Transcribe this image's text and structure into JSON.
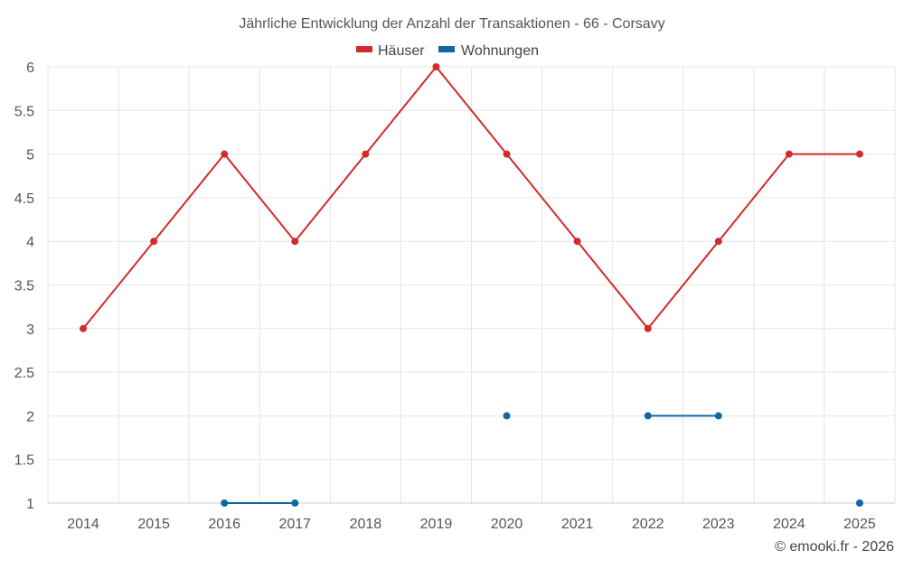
{
  "chart_data": {
    "type": "line",
    "title": "Jährliche Entwicklung der Anzahl der Transaktionen - 66 - Corsavy",
    "categories": [
      "2014",
      "2015",
      "2016",
      "2017",
      "2018",
      "2019",
      "2020",
      "2021",
      "2022",
      "2023",
      "2024",
      "2025"
    ],
    "series": [
      {
        "name": "Häuser",
        "color": "#d32a2a",
        "values": [
          3,
          4,
          5,
          4,
          5,
          6,
          5,
          4,
          3,
          4,
          5,
          5
        ]
      },
      {
        "name": "Wohnungen",
        "color": "#0f67a6",
        "values": [
          null,
          null,
          1,
          1,
          null,
          null,
          2,
          null,
          2,
          2,
          null,
          1
        ]
      }
    ],
    "ylim": [
      1,
      6
    ],
    "yticks": [
      "1",
      "1.5",
      "2",
      "2.5",
      "3",
      "3.5",
      "4",
      "4.5",
      "5",
      "5.5",
      "6"
    ],
    "grid": true,
    "legend_position": "top-center",
    "xlabel": "",
    "ylabel": ""
  },
  "credit": "© emooki.fr - 2026"
}
